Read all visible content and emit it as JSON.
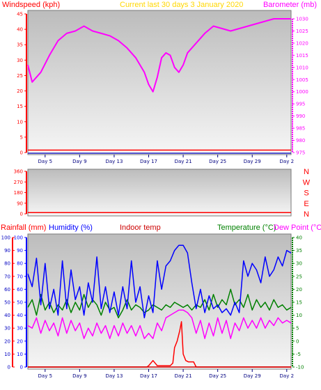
{
  "header": {
    "windspeed_label": "Windspeed (kph)",
    "period_label": "Current last 30 days 3 January 2020",
    "barometer_label": "Barometer (mb)",
    "rainfall_label": "Rainfall (mm)",
    "humidity_label": "Humidity (%)",
    "indoor_label": "Indoor temp",
    "temperature_label": "Temperature (°C)",
    "dewpoint_label": "Dew Point (°C)"
  },
  "colors": {
    "wind": "#ff0000",
    "barometer": "#ff00ff",
    "rain": "#ff0000",
    "humidity": "#0000ff",
    "temperature": "#008000",
    "dewpoint": "#ff00ff",
    "indoor": "#cc0000",
    "xtick": "#000080"
  },
  "chart_data": [
    {
      "type": "line",
      "panel": "wind-barometer",
      "x_ticks": [
        "Day 5",
        "Day 9",
        "Day 13",
        "Day 17",
        "Day 21",
        "Day 25",
        "Day 29",
        "Day 2"
      ],
      "left_axis": {
        "label": "Windspeed (kph)",
        "ylim": [
          0,
          45
        ],
        "ticks": [
          0,
          5,
          10,
          15,
          20,
          25,
          30,
          35,
          40,
          45
        ]
      },
      "right_axis": {
        "label": "Barometer (mb)",
        "ylim": [
          975,
          1030
        ],
        "ticks": [
          975,
          980,
          985,
          990,
          995,
          1000,
          1005,
          1010,
          1015,
          1020,
          1025,
          1030
        ]
      },
      "series": [
        {
          "name": "Barometer (mb)",
          "axis": "right",
          "x": [
            3.0,
            3.5,
            4.5,
            5.5,
            6.5,
            7.5,
            8.5,
            9.5,
            10.5,
            11.5,
            12.5,
            13.5,
            14.5,
            15.5,
            16.5,
            17.0,
            17.5,
            18.0,
            18.5,
            19.0,
            19.5,
            20.0,
            20.5,
            21.0,
            21.5,
            22.5,
            23.5,
            24.5,
            25.5,
            26.5,
            27.5,
            28.5,
            29.5,
            30.5,
            31.5,
            32.5,
            33.5
          ],
          "y": [
            1011,
            1004,
            1008,
            1015,
            1021,
            1024,
            1025,
            1027,
            1025,
            1024,
            1023,
            1021,
            1018,
            1014,
            1008,
            1003,
            1000,
            1006,
            1014,
            1016,
            1015,
            1010,
            1008,
            1011,
            1016,
            1020,
            1024,
            1027,
            1026,
            1025,
            1026,
            1027,
            1028,
            1029,
            1030,
            1030,
            1030
          ]
        },
        {
          "name": "Windspeed (kph)",
          "axis": "left",
          "x": [
            3.0,
            33.5
          ],
          "y": [
            0.8,
            0.8
          ]
        }
      ]
    },
    {
      "type": "line",
      "panel": "wind-direction",
      "x_ticks": [],
      "ylim": [
        0,
        360
      ],
      "y_ticks": [
        0,
        90,
        180,
        270,
        360
      ],
      "direction_labels": [
        "N",
        "W",
        "S",
        "E",
        "N"
      ],
      "series": [
        {
          "name": "Wind direction",
          "x": [
            3.0,
            33.5
          ],
          "y": [
            10,
            10
          ]
        }
      ]
    },
    {
      "type": "line",
      "panel": "rain-humidity-temperature",
      "x_ticks": [
        "Day 5",
        "Day 9",
        "Day 13",
        "Day 17",
        "Day 21",
        "Day 25",
        "Day 29",
        "Day 2"
      ],
      "left_axis": {
        "label": "Rainfall (mm)",
        "ylim": [
          0,
          100
        ],
        "ticks": [
          0,
          10,
          20,
          30,
          40,
          50,
          60,
          70,
          80,
          90,
          100
        ]
      },
      "right_axis": {
        "label": "Temperature (°C)",
        "ylim": [
          -10,
          40
        ],
        "ticks": [
          -10,
          -5,
          0,
          5,
          10,
          15,
          20,
          25,
          30,
          35,
          40
        ]
      },
      "series": [
        {
          "name": "Humidity (%)",
          "axis": "left",
          "x": [
            3.0,
            3.5,
            4.0,
            4.5,
            5.0,
            5.5,
            6.0,
            6.5,
            7.0,
            7.5,
            8.0,
            8.5,
            9.0,
            9.5,
            10.0,
            10.5,
            11.0,
            11.5,
            12.0,
            12.5,
            13.0,
            13.5,
            14.0,
            14.5,
            15.0,
            15.5,
            16.0,
            16.5,
            17.0,
            17.5,
            18.0,
            18.5,
            19.0,
            19.5,
            20.0,
            20.5,
            21.0,
            21.5,
            22.0,
            22.5,
            23.0,
            23.5,
            24.0,
            24.5,
            25.0,
            25.5,
            26.0,
            26.5,
            27.0,
            27.5,
            28.0,
            28.5,
            29.0,
            29.5,
            30.0,
            30.5,
            31.0,
            31.5,
            32.0,
            32.5,
            33.0,
            33.5
          ],
          "y": [
            72,
            62,
            84,
            48,
            80,
            45,
            60,
            40,
            82,
            45,
            75,
            52,
            62,
            40,
            65,
            50,
            85,
            45,
            62,
            42,
            58,
            40,
            62,
            45,
            82,
            50,
            62,
            38,
            55,
            42,
            82,
            60,
            78,
            82,
            90,
            94,
            94,
            88,
            65,
            45,
            60,
            42,
            55,
            45,
            48,
            42,
            45,
            40,
            50,
            42,
            82,
            70,
            80,
            75,
            65,
            85,
            70,
            75,
            85,
            78,
            90,
            88
          ]
        },
        {
          "name": "Temperature (°C)",
          "axis": "right",
          "x": [
            3.0,
            3.5,
            4.0,
            4.5,
            5.0,
            5.5,
            6.0,
            6.5,
            7.0,
            7.5,
            8.0,
            8.5,
            9.0,
            9.5,
            10.0,
            10.5,
            11.0,
            11.5,
            12.0,
            12.5,
            13.0,
            13.5,
            14.0,
            14.5,
            15.0,
            15.5,
            16.0,
            16.5,
            17.0,
            17.5,
            18.0,
            18.5,
            19.0,
            19.5,
            20.0,
            20.5,
            21.0,
            21.5,
            22.0,
            22.5,
            23.0,
            23.5,
            24.0,
            24.5,
            25.0,
            25.5,
            26.0,
            26.5,
            27.0,
            27.5,
            28.0,
            28.5,
            29.0,
            29.5,
            30.0,
            30.5,
            31.0,
            31.5,
            32.0,
            32.5,
            33.0,
            33.5
          ],
          "y": [
            13,
            16,
            10,
            18,
            12,
            15,
            11,
            14,
            12,
            16,
            11,
            15,
            12,
            18,
            13,
            16,
            14,
            10,
            15,
            12,
            13,
            9,
            12,
            16,
            12,
            14,
            13,
            11,
            12,
            14,
            13,
            12,
            14,
            13,
            15,
            14,
            13,
            14,
            12,
            14,
            13,
            16,
            12,
            18,
            13,
            16,
            14,
            20,
            14,
            16,
            13,
            18,
            12,
            16,
            13,
            15,
            12,
            16,
            13,
            14,
            12,
            13
          ]
        },
        {
          "name": "Dew Point (°C)",
          "axis": "right",
          "x": [
            3.0,
            3.5,
            4.0,
            4.5,
            5.0,
            5.5,
            6.0,
            6.5,
            7.0,
            7.5,
            8.0,
            8.5,
            9.0,
            9.5,
            10.0,
            10.5,
            11.0,
            11.5,
            12.0,
            12.5,
            13.0,
            13.5,
            14.0,
            14.5,
            15.0,
            15.5,
            16.0,
            16.5,
            17.0,
            17.5,
            18.0,
            18.5,
            19.0,
            19.5,
            20.0,
            20.5,
            21.0,
            21.5,
            22.0,
            22.5,
            23.0,
            23.5,
            24.0,
            24.5,
            25.0,
            25.5,
            26.0,
            26.5,
            27.0,
            27.5,
            28.0,
            28.5,
            29.0,
            29.5,
            30.0,
            30.5,
            31.0,
            31.5,
            32.0,
            32.5,
            33.0,
            33.5
          ],
          "y": [
            6,
            5,
            9,
            3,
            8,
            4,
            7,
            2,
            9,
            3,
            8,
            4,
            7,
            1,
            5,
            2,
            7,
            3,
            6,
            1,
            6,
            2,
            7,
            3,
            6,
            2,
            6,
            1,
            3,
            1,
            7,
            4,
            9,
            10,
            11,
            12,
            12,
            11,
            9,
            3,
            8,
            1,
            7,
            2,
            9,
            3,
            8,
            1,
            7,
            4,
            9,
            5,
            8,
            5,
            9,
            5,
            8,
            6,
            9,
            7,
            8,
            7
          ]
        },
        {
          "name": "Rainfall (mm)",
          "axis": "left",
          "x": [
            3.0,
            16.8,
            17.0,
            17.5,
            18.0,
            19.5,
            19.8,
            20.0,
            20.3,
            20.6,
            20.8,
            21.0,
            21.3,
            21.6,
            22.2,
            22.5,
            33.5
          ],
          "y": [
            0,
            0,
            1,
            5,
            1,
            1,
            3,
            15,
            20,
            28,
            35,
            10,
            5,
            4,
            4,
            0,
            0
          ]
        },
        {
          "name": "Indoor temp",
          "axis": "right",
          "x": [
            3.0,
            33.5
          ],
          "y": [
            -10,
            -10
          ]
        }
      ]
    }
  ]
}
